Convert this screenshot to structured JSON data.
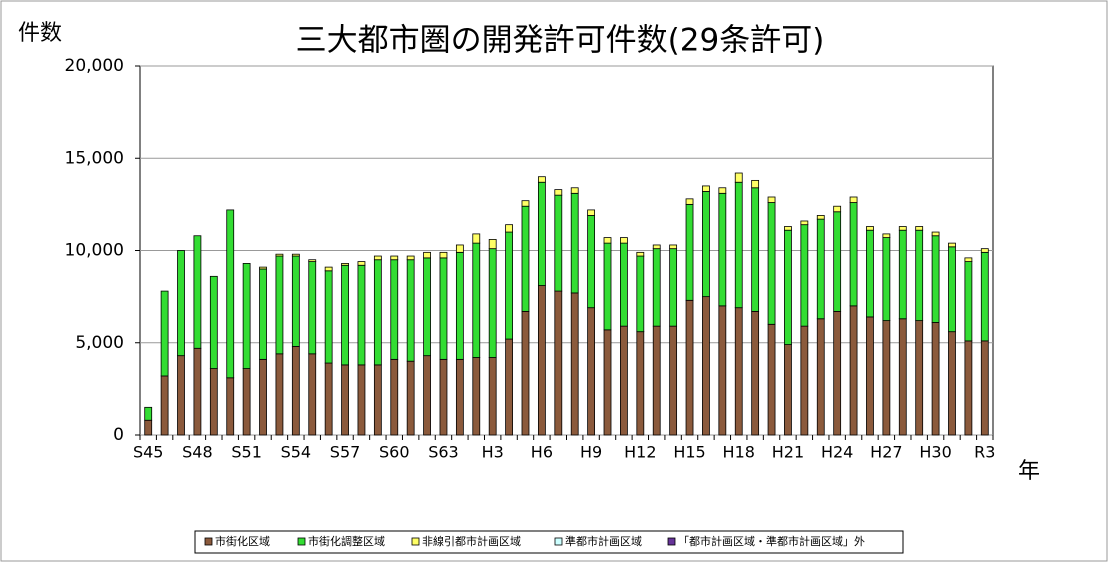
{
  "chart_data": {
    "type": "stacked-bar",
    "title": "三大都市圏の開発許可件数(29条許可)",
    "y_label": "件数",
    "x_label": "年",
    "categories": [
      "S45",
      null,
      null,
      "S48",
      null,
      null,
      "S51",
      null,
      null,
      "S54",
      null,
      null,
      "S57",
      null,
      null,
      "S60",
      null,
      null,
      "S63",
      null,
      null,
      "H3",
      null,
      null,
      "H6",
      null,
      null,
      "H9",
      null,
      null,
      "H12",
      null,
      null,
      "H15",
      null,
      null,
      "H18",
      null,
      null,
      "H21",
      null,
      null,
      "H24",
      null,
      null,
      "H27",
      null,
      null,
      "H30",
      null,
      null,
      "R3"
    ],
    "series": [
      {
        "name": "市街化区域",
        "color": "#8b5a3c",
        "values": [
          800,
          3200,
          4300,
          4700,
          3600,
          3100,
          3600,
          4100,
          4400,
          4800,
          4400,
          3900,
          3800,
          3800,
          3800,
          4100,
          4000,
          4300,
          4100,
          4100,
          4200,
          4200,
          5200,
          6700,
          8100,
          7800,
          7700,
          6900,
          5700,
          5900,
          5600,
          5900,
          5900,
          7300,
          7500,
          7000,
          6900,
          6700,
          6000,
          4900,
          5900,
          6300,
          6700,
          7000,
          6400,
          6200,
          6300,
          6200,
          6100,
          5600,
          5100,
          5100
        ]
      },
      {
        "name": "市街化調整区域",
        "color": "#33dd33",
        "values": [
          700,
          4600,
          5700,
          6100,
          5000,
          9100,
          5700,
          4900,
          5300,
          4900,
          5000,
          5000,
          5400,
          5400,
          5700,
          5400,
          5500,
          5300,
          5500,
          5800,
          6200,
          5900,
          5800,
          5700,
          5600,
          5200,
          5400,
          5000,
          4700,
          4500,
          4100,
          4200,
          4200,
          5200,
          5700,
          6100,
          6800,
          6700,
          6600,
          6200,
          5500,
          5400,
          5400,
          5600,
          4700,
          4500,
          4800,
          4900,
          4700,
          4600,
          4300,
          4800
        ]
      },
      {
        "name": "非線引都市計画区域",
        "color": "#ffff66",
        "values": [
          0,
          0,
          0,
          0,
          0,
          0,
          0,
          100,
          100,
          100,
          100,
          200,
          100,
          200,
          200,
          200,
          200,
          300,
          300,
          400,
          500,
          500,
          400,
          300,
          300,
          300,
          300,
          300,
          300,
          300,
          200,
          200,
          200,
          300,
          300,
          300,
          500,
          400,
          300,
          200,
          200,
          200,
          300,
          300,
          200,
          200,
          200,
          200,
          200,
          200,
          200,
          200
        ]
      },
      {
        "name": "準都市計画区域",
        "color": "#ccffff",
        "values": [
          0,
          0,
          0,
          0,
          0,
          0,
          0,
          0,
          0,
          0,
          0,
          0,
          0,
          0,
          0,
          0,
          0,
          0,
          0,
          0,
          0,
          0,
          0,
          0,
          0,
          0,
          0,
          0,
          0,
          0,
          0,
          0,
          0,
          0,
          0,
          0,
          0,
          0,
          0,
          0,
          0,
          0,
          0,
          0,
          0,
          0,
          0,
          0,
          0,
          0,
          0,
          0
        ]
      },
      {
        "name": "「都市計画区域・準都市計画区域」外",
        "color": "#663399",
        "values": [
          0,
          0,
          0,
          0,
          0,
          0,
          0,
          0,
          0,
          0,
          0,
          0,
          0,
          0,
          0,
          0,
          0,
          0,
          0,
          0,
          0,
          0,
          0,
          0,
          0,
          0,
          0,
          0,
          0,
          0,
          0,
          0,
          0,
          0,
          0,
          0,
          0,
          0,
          0,
          0,
          0,
          0,
          0,
          0,
          0,
          0,
          0,
          0,
          0,
          0,
          0,
          0
        ]
      }
    ],
    "ylim": [
      0,
      20000
    ],
    "yticks": [
      0,
      {
        "value": 5000,
        "label": "5,000"
      },
      {
        "value": 10000,
        "label": "10,000"
      },
      {
        "value": 15000,
        "label": "15,000"
      },
      {
        "value": 20000,
        "label": "20,000"
      }
    ],
    "grid": true
  }
}
